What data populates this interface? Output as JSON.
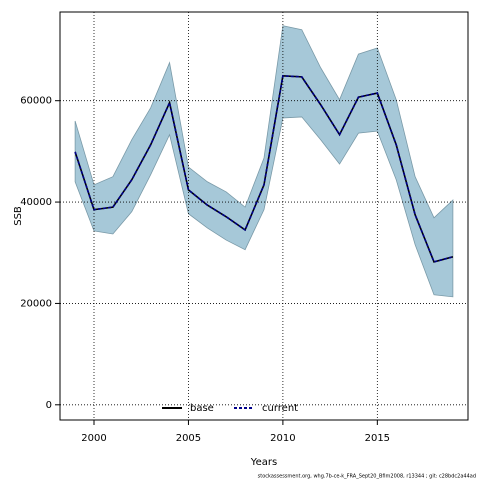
{
  "chart_data": {
    "type": "line",
    "xlabel": "Years",
    "ylabel": "SSB",
    "footer": "stockassessment.org, whg.7b-ce-k_FRA_Sept20_Bfim2008, r13344 ; git: c28bdc2a44ad",
    "x": [
      1999,
      2000,
      2001,
      2002,
      2003,
      2004,
      2005,
      2006,
      2007,
      2008,
      2009,
      2010,
      2011,
      2012,
      2013,
      2014,
      2015,
      2016,
      2017,
      2018,
      2019
    ],
    "series": [
      {
        "name": "base",
        "color": "#000000",
        "values": [
          49900,
          38500,
          39000,
          44400,
          51300,
          59600,
          42400,
          39400,
          37100,
          34500,
          43400,
          64900,
          64700,
          59200,
          53300,
          60700,
          61500,
          51300,
          37500,
          28200,
          29200
        ]
      },
      {
        "name": "current",
        "color": "#00008b",
        "band_color": "#a6c8d8",
        "values": [
          49900,
          38500,
          39000,
          44400,
          51300,
          59600,
          42400,
          39400,
          37100,
          34500,
          43400,
          64900,
          64700,
          59200,
          53300,
          60700,
          61500,
          51300,
          37500,
          28200,
          29200
        ],
        "upper": [
          56000,
          43400,
          45000,
          52300,
          58600,
          67500,
          46900,
          44000,
          42000,
          39000,
          48700,
          74800,
          74000,
          66500,
          60200,
          69200,
          70400,
          60200,
          45000,
          36900,
          40400
        ],
        "lower": [
          44000,
          34300,
          33700,
          38100,
          45400,
          53300,
          37700,
          34900,
          32500,
          30600,
          38500,
          56600,
          56800,
          52300,
          47500,
          53600,
          54000,
          44400,
          31600,
          21700,
          21300
        ]
      }
    ],
    "xlim": [
      1998.2,
      2019.8
    ],
    "ylim": [
      -3000,
      77500
    ],
    "xticks": [
      2000,
      2005,
      2010,
      2015
    ],
    "yticks": [
      0,
      20000,
      40000,
      60000
    ],
    "grid": true,
    "legend": "bottom"
  }
}
